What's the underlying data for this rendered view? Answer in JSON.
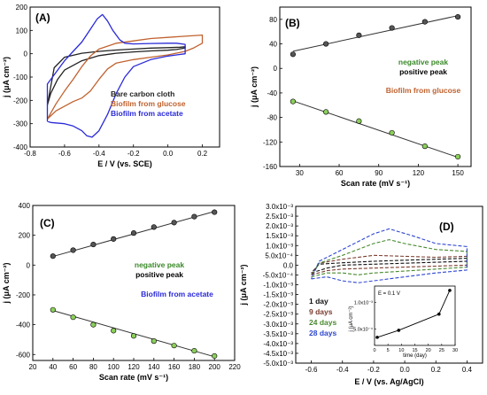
{
  "chart_data": [
    {
      "panel": "(A)",
      "type": "line",
      "xlabel": "E / V (vs. SCE)",
      "ylabel": "j (μA cm⁻²)",
      "xlim": [
        -0.8,
        0.3
      ],
      "ylim": [
        -400,
        200
      ],
      "xticks": [
        -0.8,
        -0.6,
        -0.4,
        -0.2,
        0.0,
        0.2
      ],
      "yticks": [
        -400,
        -300,
        -200,
        -100,
        0,
        100,
        200
      ],
      "xtick_labels": [
        "-0.8",
        "-0.6",
        "-0.4",
        "-0.2",
        "0.0",
        "0.2"
      ],
      "ytick_labels": [
        "-400",
        "-300",
        "-200",
        "-100",
        "0",
        "100",
        "200"
      ],
      "legend_position": "lower-right",
      "series": [
        {
          "name": "Bare carbon cloth",
          "color": "#222222",
          "points": [
            [
              -0.7,
              -220
            ],
            [
              -0.68,
              -170
            ],
            [
              -0.64,
              -110
            ],
            [
              -0.6,
              -70
            ],
            [
              -0.5,
              -30
            ],
            [
              -0.4,
              -8
            ],
            [
              -0.3,
              2
            ],
            [
              -0.2,
              8
            ],
            [
              -0.1,
              12
            ],
            [
              0.0,
              15
            ],
            [
              0.05,
              18
            ],
            [
              0.1,
              25
            ],
            [
              0.1,
              30
            ],
            [
              0.07,
              28
            ],
            [
              0.0,
              26
            ],
            [
              -0.1,
              24
            ],
            [
              -0.2,
              20
            ],
            [
              -0.3,
              16
            ],
            [
              -0.4,
              10
            ],
            [
              -0.5,
              2
            ],
            [
              -0.6,
              -15
            ],
            [
              -0.66,
              -60
            ],
            [
              -0.7,
              -220
            ]
          ]
        },
        {
          "name": "Biofilm from glucose",
          "color": "#c0622f",
          "points": [
            [
              -0.7,
              -280
            ],
            [
              -0.65,
              -245
            ],
            [
              -0.6,
              -225
            ],
            [
              -0.55,
              -205
            ],
            [
              -0.5,
              -190
            ],
            [
              -0.45,
              -160
            ],
            [
              -0.4,
              -110
            ],
            [
              -0.35,
              -65
            ],
            [
              -0.3,
              -40
            ],
            [
              -0.2,
              -25
            ],
            [
              -0.1,
              -15
            ],
            [
              0.0,
              -5
            ],
            [
              0.1,
              10
            ],
            [
              0.15,
              25
            ],
            [
              0.2,
              45
            ],
            [
              0.2,
              80
            ],
            [
              0.1,
              75
            ],
            [
              0.0,
              70
            ],
            [
              -0.1,
              65
            ],
            [
              -0.2,
              55
            ],
            [
              -0.3,
              45
            ],
            [
              -0.4,
              20
            ],
            [
              -0.45,
              -10
            ],
            [
              -0.5,
              -55
            ],
            [
              -0.55,
              -110
            ],
            [
              -0.6,
              -160
            ],
            [
              -0.65,
              -215
            ],
            [
              -0.7,
              -280
            ]
          ]
        },
        {
          "name": "Biofilm from acetate",
          "color": "#2a2ad8",
          "points": [
            [
              -0.7,
              -290
            ],
            [
              -0.68,
              -295
            ],
            [
              -0.6,
              -300
            ],
            [
              -0.55,
              -310
            ],
            [
              -0.5,
              -330
            ],
            [
              -0.47,
              -352
            ],
            [
              -0.44,
              -358
            ],
            [
              -0.4,
              -330
            ],
            [
              -0.35,
              -260
            ],
            [
              -0.3,
              -170
            ],
            [
              -0.25,
              -100
            ],
            [
              -0.2,
              -55
            ],
            [
              -0.1,
              -25
            ],
            [
              0.0,
              -10
            ],
            [
              0.05,
              -5
            ],
            [
              0.1,
              0
            ],
            [
              0.1,
              40
            ],
            [
              0.05,
              45
            ],
            [
              0.0,
              45
            ],
            [
              -0.1,
              44
            ],
            [
              -0.2,
              42
            ],
            [
              -0.25,
              45
            ],
            [
              -0.28,
              60
            ],
            [
              -0.32,
              100
            ],
            [
              -0.35,
              140
            ],
            [
              -0.38,
              168
            ],
            [
              -0.41,
              150
            ],
            [
              -0.45,
              105
            ],
            [
              -0.5,
              50
            ],
            [
              -0.55,
              10
            ],
            [
              -0.6,
              -30
            ],
            [
              -0.65,
              -80
            ],
            [
              -0.7,
              -130
            ],
            [
              -0.7,
              -290
            ]
          ]
        }
      ]
    },
    {
      "panel": "(B)",
      "type": "scatter",
      "xlabel": "Scan rate (mV s⁻¹)",
      "ylabel": "j (μA cm⁻²)",
      "xlim": [
        15,
        160
      ],
      "ylim": [
        -160,
        100
      ],
      "xticks": [
        30,
        60,
        90,
        120,
        150
      ],
      "yticks": [
        -160,
        -120,
        -80,
        -40,
        0,
        40,
        80
      ],
      "xtick_labels": [
        "30",
        "60",
        "90",
        "120",
        "150"
      ],
      "ytick_labels": [
        "-160",
        "-120",
        "-80",
        "-40",
        "0",
        "40",
        "80"
      ],
      "legend": [
        "negative peak",
        "positive peak",
        "Biofilm from glucose"
      ],
      "legend_colors": [
        "#3b8a2a",
        "#000000",
        "#c0622f"
      ],
      "legend_position": "right",
      "series": [
        {
          "role": "positive",
          "marker_color": "#555555",
          "x": [
            25,
            50,
            75,
            100,
            125,
            150
          ],
          "y": [
            23,
            40,
            54,
            66,
            76,
            84
          ],
          "fit": [
            [
              25,
              28
            ],
            [
              150,
              86
            ]
          ]
        },
        {
          "role": "negative",
          "marker_color": "#8bcf5a",
          "x": [
            25,
            50,
            75,
            100,
            125,
            150
          ],
          "y": [
            -54,
            -71,
            -86,
            -105,
            -127,
            -144
          ],
          "fit": [
            [
              25,
              -53
            ],
            [
              150,
              -145
            ]
          ]
        }
      ]
    },
    {
      "panel": "(C)",
      "type": "scatter",
      "xlabel": "Scan rate (mV s⁻¹)",
      "ylabel": "j (μA cm⁻²)",
      "xlim": [
        20,
        220
      ],
      "ylim": [
        -640,
        400
      ],
      "xticks": [
        20,
        40,
        60,
        80,
        100,
        120,
        140,
        160,
        180,
        200,
        220
      ],
      "yticks": [
        -600,
        -400,
        -200,
        0,
        200,
        400
      ],
      "xtick_labels": [
        "20",
        "40",
        "60",
        "80",
        "100",
        "120",
        "140",
        "160",
        "180",
        "200",
        "220"
      ],
      "ytick_labels": [
        "-600",
        "-400",
        "-200",
        "0",
        "200",
        "400"
      ],
      "legend": [
        "negative peak",
        "positive peak",
        "Biofilm from acetate"
      ],
      "legend_colors": [
        "#3b8a2a",
        "#000000",
        "#2a2ad8"
      ],
      "legend_position": "right",
      "series": [
        {
          "role": "positive",
          "marker_color": "#555555",
          "x": [
            40,
            60,
            80,
            100,
            120,
            140,
            160,
            180,
            200
          ],
          "y": [
            60,
            100,
            138,
            175,
            215,
            255,
            285,
            325,
            355
          ],
          "fit": [
            [
              40,
              58
            ],
            [
              200,
              360
            ]
          ]
        },
        {
          "role": "negative",
          "marker_color": "#8bcf5a",
          "x": [
            40,
            60,
            80,
            100,
            120,
            140,
            160,
            180,
            200
          ],
          "y": [
            -300,
            -350,
            -400,
            -440,
            -475,
            -510,
            -540,
            -575,
            -610
          ],
          "fit": [
            [
              40,
              -305
            ],
            [
              200,
              -615
            ]
          ]
        }
      ]
    },
    {
      "panel": "(D)",
      "type": "line",
      "xlabel": "E / V (vs. Ag/AgCl)",
      "ylabel": "j (μA cm⁻²)",
      "xlim": [
        -0.7,
        0.5
      ],
      "ylim": [
        -0.005,
        0.003
      ],
      "xticks": [
        -0.6,
        -0.4,
        -0.2,
        0.0,
        0.2,
        0.4
      ],
      "yticks": [
        -0.005,
        -0.0045,
        -0.004,
        -0.0035,
        -0.003,
        -0.0025,
        -0.002,
        -0.0015,
        -0.001,
        -0.0005,
        0.0,
        0.0005,
        0.001,
        0.0015,
        0.002,
        0.0025,
        0.003
      ],
      "xtick_labels": [
        "-0.6",
        "-0.4",
        "-0.2",
        "0.0",
        "0.2",
        "0.4"
      ],
      "ytick_labels": [
        "-5.0x10⁻³",
        "-4.5x10⁻³",
        "-4.0x10⁻³",
        "-3.5x10⁻³",
        "-3.0x10⁻³",
        "-2.5x10⁻³",
        "-2.0x10⁻³",
        "-1.5x10⁻³",
        "-1.0x10⁻³",
        "-5.0x10⁻⁴",
        "0.0",
        "5.0x10⁻⁴",
        "1.0x10⁻³",
        "1.5x10⁻³",
        "2.0x10⁻³",
        "2.5x10⁻³",
        "3.0x10⁻³"
      ],
      "legend_position": "left",
      "series": [
        {
          "name": "1 day",
          "color": "#111111",
          "points": [
            [
              -0.6,
              -0.0004
            ],
            [
              -0.5,
              -0.00015
            ],
            [
              -0.4,
              0.0
            ],
            [
              -0.2,
              5e-05
            ],
            [
              0.0,
              0.0001
            ],
            [
              0.2,
              0.00015
            ],
            [
              0.4,
              0.0002
            ],
            [
              0.4,
              0.00035
            ],
            [
              0.2,
              0.0003
            ],
            [
              0.0,
              0.00025
            ],
            [
              -0.2,
              0.0002
            ],
            [
              -0.4,
              0.00012
            ],
            [
              -0.55,
              5e-05
            ],
            [
              -0.6,
              -0.0004
            ]
          ]
        },
        {
          "name": "9 days",
          "color": "#7a3b2e",
          "points": [
            [
              -0.6,
              -0.0005
            ],
            [
              -0.5,
              -0.00028
            ],
            [
              -0.4,
              -0.0002
            ],
            [
              -0.2,
              -0.00015
            ],
            [
              0.0,
              -0.0001
            ],
            [
              0.2,
              -5e-05
            ],
            [
              0.4,
              0.0
            ],
            [
              0.4,
              0.00045
            ],
            [
              0.2,
              0.0004
            ],
            [
              0.0,
              0.00045
            ],
            [
              -0.2,
              0.0005
            ],
            [
              -0.4,
              0.0003
            ],
            [
              -0.55,
              0.0001
            ],
            [
              -0.6,
              -0.0005
            ]
          ]
        },
        {
          "name": "24 days",
          "color": "#4a8a30",
          "points": [
            [
              -0.6,
              -0.0006
            ],
            [
              -0.5,
              -0.0004
            ],
            [
              -0.4,
              -0.0004
            ],
            [
              -0.3,
              -0.0005
            ],
            [
              -0.2,
              -0.0004
            ],
            [
              0.0,
              -0.0003
            ],
            [
              0.2,
              -0.0002
            ],
            [
              0.4,
              -0.0001
            ],
            [
              0.4,
              0.0007
            ],
            [
              0.2,
              0.0008
            ],
            [
              0.0,
              0.0011
            ],
            [
              -0.1,
              0.0013
            ],
            [
              -0.2,
              0.0011
            ],
            [
              -0.4,
              0.0005
            ],
            [
              -0.55,
              0.0001
            ],
            [
              -0.6,
              -0.0006
            ]
          ]
        },
        {
          "name": "28 days",
          "color": "#2e46d0",
          "points": [
            [
              -0.6,
              -0.0007
            ],
            [
              -0.5,
              -0.0006
            ],
            [
              -0.4,
              -0.0008
            ],
            [
              -0.3,
              -0.0009
            ],
            [
              -0.2,
              -0.0008
            ],
            [
              0.0,
              -0.0006
            ],
            [
              0.2,
              -0.0004
            ],
            [
              0.4,
              -0.00025
            ],
            [
              0.4,
              0.00095
            ],
            [
              0.2,
              0.0011
            ],
            [
              0.05,
              0.0015
            ],
            [
              -0.1,
              0.00185
            ],
            [
              -0.2,
              0.0016
            ],
            [
              -0.4,
              0.0008
            ],
            [
              -0.55,
              0.0002
            ],
            [
              -0.6,
              -0.0007
            ]
          ]
        }
      ],
      "inset": {
        "type": "line",
        "annotation": "E = 0.1 V",
        "xlabel": "time (day)",
        "ylabel": "j (μA cm⁻²)",
        "xlim": [
          0,
          30
        ],
        "ylim": [
          0.0002,
          0.0013
        ],
        "xticks": [
          0,
          5,
          10,
          15,
          20,
          25,
          30
        ],
        "xtick_labels": [
          "0",
          "5",
          "10",
          "15",
          "20",
          "25",
          "30"
        ],
        "yticks": [
          0.0005,
          0.001
        ],
        "ytick_labels": [
          "5.0x10⁻⁴",
          "1.0x10⁻³"
        ],
        "x": [
          1,
          9,
          24,
          28
        ],
        "y": [
          0.00035,
          0.00048,
          0.00078,
          0.00122
        ]
      }
    }
  ]
}
